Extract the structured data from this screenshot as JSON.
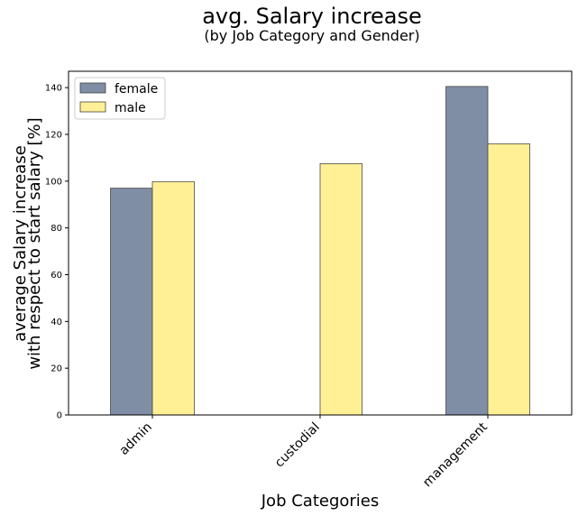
{
  "chart_data": {
    "type": "bar",
    "title": "avg. Salary increase",
    "subtitle": "(by Job Category and Gender)",
    "xlabel": "Job Categories",
    "ylabel_line1": "average Salary increase",
    "ylabel_line2": "with respect to start salary [%]",
    "categories": [
      "admin",
      "custodial",
      "management"
    ],
    "series": [
      {
        "name": "female",
        "color": "#7f8ea5",
        "values": [
          97,
          null,
          140.5
        ]
      },
      {
        "name": "male",
        "color": "#fff096",
        "values": [
          99.8,
          107.5,
          116
        ]
      }
    ],
    "ylim": [
      0,
      147
    ],
    "yticks": [
      0,
      20,
      40,
      60,
      80,
      100,
      120,
      140
    ],
    "legend_position": "top-left",
    "grid": false
  }
}
